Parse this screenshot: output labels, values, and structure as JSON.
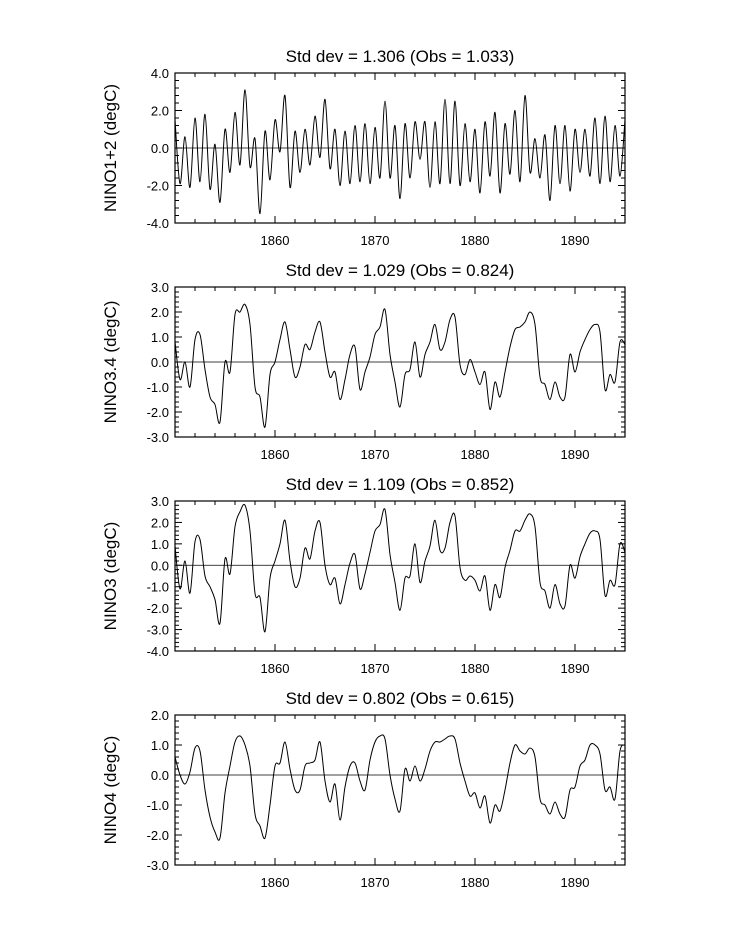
{
  "chart_data": [
    {
      "type": "line",
      "title": "Std dev = 1.306 (Obs = 1.033)",
      "ylabel": "NINO1+2 (degC)",
      "ylim": [
        -4.0,
        4.0
      ],
      "yticks": [
        "4.0",
        "2.0",
        "0.0",
        "-2.0",
        "-4.0"
      ],
      "ytick_values": [
        4.0,
        2.0,
        0.0,
        -2.0,
        -4.0
      ],
      "xlim": [
        1850,
        1895
      ],
      "xticks": [
        "1860",
        "1870",
        "1880",
        "1890"
      ],
      "xtick_values": [
        1860,
        1870,
        1880,
        1890
      ],
      "zero_line": true,
      "x": [
        1850.0,
        1850.5,
        1851.0,
        1851.5,
        1852.0,
        1852.5,
        1853.0,
        1853.5,
        1854.0,
        1854.5,
        1855.0,
        1855.5,
        1856.0,
        1856.5,
        1857.0,
        1857.5,
        1858.0,
        1858.5,
        1859.0,
        1859.5,
        1860.0,
        1860.5,
        1861.0,
        1861.5,
        1862.0,
        1862.5,
        1863.0,
        1863.5,
        1864.0,
        1864.5,
        1865.0,
        1865.5,
        1866.0,
        1866.5,
        1867.0,
        1867.5,
        1868.0,
        1868.5,
        1869.0,
        1869.5,
        1870.0,
        1870.5,
        1871.0,
        1871.5,
        1872.0,
        1872.5,
        1873.0,
        1873.5,
        1874.0,
        1874.5,
        1875.0,
        1875.5,
        1876.0,
        1876.5,
        1877.0,
        1877.5,
        1878.0,
        1878.5,
        1879.0,
        1879.5,
        1880.0,
        1880.5,
        1881.0,
        1881.5,
        1882.0,
        1882.5,
        1883.0,
        1883.5,
        1884.0,
        1884.5,
        1885.0,
        1885.5,
        1886.0,
        1886.5,
        1887.0,
        1887.5,
        1888.0,
        1888.5,
        1889.0,
        1889.5,
        1890.0,
        1890.5,
        1891.0,
        1891.5,
        1892.0,
        1892.5,
        1893.0,
        1893.5,
        1894.0,
        1894.5,
        1895.0
      ],
      "series": [
        {
          "values": [
            1.5,
            -1.9,
            0.6,
            -2.1,
            1.6,
            -1.8,
            1.8,
            -2.2,
            0.2,
            -2.9,
            1.0,
            -1.3,
            1.9,
            -0.9,
            3.1,
            -1.0,
            0.5,
            -3.5,
            0.9,
            -1.7,
            1.5,
            -0.2,
            2.8,
            -2.1,
            0.9,
            -1.3,
            1.0,
            -0.9,
            1.7,
            -0.5,
            2.6,
            -1.1,
            1.0,
            -2.0,
            0.9,
            -1.9,
            1.2,
            -1.8,
            1.3,
            -1.9,
            1.1,
            -1.6,
            2.5,
            -1.6,
            1.2,
            -2.7,
            1.3,
            -1.6,
            1.4,
            -0.6,
            1.4,
            -2.1,
            1.4,
            -1.9,
            2.6,
            -1.9,
            2.5,
            -2.0,
            1.3,
            -1.8,
            1.0,
            -2.4,
            1.4,
            -1.5,
            1.9,
            -2.4,
            1.3,
            -1.4,
            2.0,
            -1.8,
            2.8,
            -1.3,
            0.5,
            -1.6,
            0.7,
            -2.8,
            1.2,
            -1.9,
            1.2,
            -2.3,
            1.0,
            -1.3,
            1.0,
            -1.5,
            1.6,
            -1.9,
            1.7,
            -1.8,
            1.2,
            -1.5,
            1.5
          ]
        }
      ]
    },
    {
      "type": "line",
      "title": "Std dev = 1.029 (Obs = 0.824)",
      "ylabel": "NINO3.4 (degC)",
      "ylim": [
        -3.0,
        3.0
      ],
      "yticks": [
        "3.0",
        "2.0",
        "1.0",
        "0.0",
        "-1.0",
        "-2.0",
        "-3.0"
      ],
      "ytick_values": [
        3.0,
        2.0,
        1.0,
        0.0,
        -1.0,
        -2.0,
        -3.0
      ],
      "xlim": [
        1850,
        1895
      ],
      "xticks": [
        "1860",
        "1870",
        "1880",
        "1890"
      ],
      "xtick_values": [
        1860,
        1870,
        1880,
        1890
      ],
      "zero_line": true,
      "x": [
        1850.0,
        1850.5,
        1851.0,
        1851.5,
        1852.0,
        1852.5,
        1853.0,
        1853.5,
        1854.0,
        1854.5,
        1855.0,
        1855.5,
        1856.0,
        1856.5,
        1857.0,
        1857.5,
        1858.0,
        1858.5,
        1859.0,
        1859.5,
        1860.0,
        1860.5,
        1861.0,
        1861.5,
        1862.0,
        1862.5,
        1863.0,
        1863.5,
        1864.0,
        1864.5,
        1865.0,
        1865.5,
        1866.0,
        1866.5,
        1867.0,
        1867.5,
        1868.0,
        1868.5,
        1869.0,
        1869.5,
        1870.0,
        1870.5,
        1871.0,
        1871.5,
        1872.0,
        1872.5,
        1873.0,
        1873.5,
        1874.0,
        1874.5,
        1875.0,
        1875.5,
        1876.0,
        1876.5,
        1877.0,
        1877.5,
        1878.0,
        1878.5,
        1879.0,
        1879.5,
        1880.0,
        1880.5,
        1881.0,
        1881.5,
        1882.0,
        1882.5,
        1883.0,
        1883.5,
        1884.0,
        1884.5,
        1885.0,
        1885.5,
        1886.0,
        1886.5,
        1887.0,
        1887.5,
        1888.0,
        1888.5,
        1889.0,
        1889.5,
        1890.0,
        1890.5,
        1891.0,
        1891.5,
        1892.0,
        1892.5,
        1893.0,
        1893.5,
        1894.0,
        1894.5,
        1895.0
      ],
      "series": [
        {
          "values": [
            0.8,
            -0.7,
            0.0,
            -1.0,
            0.9,
            1.1,
            -0.3,
            -1.4,
            -1.7,
            -2.4,
            0.0,
            -0.4,
            1.9,
            2.0,
            2.3,
            1.5,
            -1.0,
            -1.4,
            -2.6,
            -0.5,
            0.0,
            0.9,
            1.6,
            0.5,
            -0.6,
            -0.2,
            0.7,
            0.5,
            1.2,
            1.6,
            0.4,
            -0.6,
            -0.4,
            -1.5,
            -0.7,
            0.3,
            0.6,
            -1.1,
            -0.4,
            0.2,
            1.1,
            1.4,
            2.1,
            0.3,
            -0.8,
            -1.8,
            -0.5,
            -0.3,
            0.8,
            -0.6,
            0.3,
            0.8,
            1.5,
            0.5,
            0.8,
            1.7,
            1.8,
            -0.1,
            -0.5,
            0.1,
            -0.4,
            -0.9,
            -0.4,
            -1.9,
            -0.8,
            -1.4,
            -0.4,
            0.6,
            1.3,
            1.4,
            1.6,
            2.0,
            1.5,
            -0.6,
            -0.9,
            -1.5,
            -0.8,
            -1.4,
            -1.4,
            0.3,
            -0.4,
            0.4,
            0.9,
            1.3,
            1.5,
            1.2,
            -1.1,
            -0.5,
            -0.8,
            0.8,
            0.7
          ]
        }
      ]
    },
    {
      "type": "line",
      "title": "Std dev = 1.109 (Obs = 0.852)",
      "ylabel": "NINO3 (degC)",
      "ylim": [
        -4.0,
        3.0
      ],
      "yticks": [
        "3.0",
        "2.0",
        "1.0",
        "0.0",
        "-1.0",
        "-2.0",
        "-3.0",
        "-4.0"
      ],
      "ytick_values": [
        3.0,
        2.0,
        1.0,
        0.0,
        -1.0,
        -2.0,
        -3.0,
        -4.0
      ],
      "xlim": [
        1850,
        1895
      ],
      "xticks": [
        "1860",
        "1870",
        "1880",
        "1890"
      ],
      "xtick_values": [
        1860,
        1870,
        1880,
        1890
      ],
      "zero_line": true,
      "x": [
        1850.0,
        1850.5,
        1851.0,
        1851.5,
        1852.0,
        1852.5,
        1853.0,
        1853.5,
        1854.0,
        1854.5,
        1855.0,
        1855.5,
        1856.0,
        1856.5,
        1857.0,
        1857.5,
        1858.0,
        1858.5,
        1859.0,
        1859.5,
        1860.0,
        1860.5,
        1861.0,
        1861.5,
        1862.0,
        1862.5,
        1863.0,
        1863.5,
        1864.0,
        1864.5,
        1865.0,
        1865.5,
        1866.0,
        1866.5,
        1867.0,
        1867.5,
        1868.0,
        1868.5,
        1869.0,
        1869.5,
        1870.0,
        1870.5,
        1871.0,
        1871.5,
        1872.0,
        1872.5,
        1873.0,
        1873.5,
        1874.0,
        1874.5,
        1875.0,
        1875.5,
        1876.0,
        1876.5,
        1877.0,
        1877.5,
        1878.0,
        1878.5,
        1879.0,
        1879.5,
        1880.0,
        1880.5,
        1881.0,
        1881.5,
        1882.0,
        1882.5,
        1883.0,
        1883.5,
        1884.0,
        1884.5,
        1885.0,
        1885.5,
        1886.0,
        1886.5,
        1887.0,
        1887.5,
        1888.0,
        1888.5,
        1889.0,
        1889.5,
        1890.0,
        1890.5,
        1891.0,
        1891.5,
        1892.0,
        1892.5,
        1893.0,
        1893.5,
        1894.0,
        1894.5,
        1895.0
      ],
      "series": [
        {
          "values": [
            0.9,
            -1.1,
            0.2,
            -1.3,
            1.1,
            1.2,
            -0.5,
            -1.0,
            -1.6,
            -2.7,
            0.3,
            -0.4,
            1.8,
            2.5,
            2.8,
            1.6,
            -1.3,
            -1.5,
            -3.1,
            -0.6,
            0.2,
            1.0,
            2.1,
            0.2,
            -1.0,
            -0.6,
            0.8,
            0.3,
            1.6,
            2.0,
            0.0,
            -0.9,
            -0.6,
            -1.8,
            -0.9,
            0.1,
            0.5,
            -1.1,
            -0.4,
            0.6,
            1.6,
            1.9,
            2.6,
            0.5,
            -0.8,
            -2.1,
            -0.6,
            -0.5,
            1.0,
            -0.8,
            0.2,
            0.9,
            2.1,
            0.7,
            0.8,
            2.0,
            2.3,
            -0.1,
            -0.7,
            -0.5,
            -0.7,
            -1.2,
            -0.5,
            -2.1,
            -0.9,
            -1.5,
            -0.1,
            0.7,
            1.6,
            1.6,
            2.1,
            2.4,
            1.8,
            -0.8,
            -1.2,
            -2.0,
            -0.9,
            -1.8,
            -1.9,
            0.0,
            -0.6,
            0.4,
            1.0,
            1.5,
            1.6,
            1.2,
            -1.4,
            -0.7,
            -0.9,
            1.0,
            0.6
          ]
        }
      ]
    },
    {
      "type": "line",
      "title": "Std dev = 0.802 (Obs = 0.615)",
      "ylabel": "NINO4 (degC)",
      "ylim": [
        -3.0,
        2.0
      ],
      "yticks": [
        "2.0",
        "1.0",
        "0.0",
        "-1.0",
        "-2.0",
        "-3.0"
      ],
      "ytick_values": [
        2.0,
        1.0,
        0.0,
        -1.0,
        -2.0,
        -3.0
      ],
      "xlim": [
        1850,
        1895
      ],
      "xticks": [
        "1860",
        "1870",
        "1880",
        "1890"
      ],
      "xtick_values": [
        1860,
        1870,
        1880,
        1890
      ],
      "zero_line": true,
      "x": [
        1850.0,
        1850.5,
        1851.0,
        1851.5,
        1852.0,
        1852.5,
        1853.0,
        1853.5,
        1854.0,
        1854.5,
        1855.0,
        1855.5,
        1856.0,
        1856.5,
        1857.0,
        1857.5,
        1858.0,
        1858.5,
        1859.0,
        1859.5,
        1860.0,
        1860.5,
        1861.0,
        1861.5,
        1862.0,
        1862.5,
        1863.0,
        1863.5,
        1864.0,
        1864.5,
        1865.0,
        1865.5,
        1866.0,
        1866.5,
        1867.0,
        1867.5,
        1868.0,
        1868.5,
        1869.0,
        1869.5,
        1870.0,
        1870.5,
        1871.0,
        1871.5,
        1872.0,
        1872.5,
        1873.0,
        1873.5,
        1874.0,
        1874.5,
        1875.0,
        1875.5,
        1876.0,
        1876.5,
        1877.0,
        1877.5,
        1878.0,
        1878.5,
        1879.0,
        1879.5,
        1880.0,
        1880.5,
        1881.0,
        1881.5,
        1882.0,
        1882.5,
        1883.0,
        1883.5,
        1884.0,
        1884.5,
        1885.0,
        1885.5,
        1886.0,
        1886.5,
        1887.0,
        1887.5,
        1888.0,
        1888.5,
        1889.0,
        1889.5,
        1890.0,
        1890.5,
        1891.0,
        1891.5,
        1892.0,
        1892.5,
        1893.0,
        1893.5,
        1894.0,
        1894.5,
        1895.0
      ],
      "series": [
        {
          "values": [
            0.6,
            0.0,
            -0.3,
            0.1,
            0.9,
            0.8,
            -0.5,
            -1.4,
            -1.9,
            -2.1,
            -0.6,
            0.3,
            1.1,
            1.3,
            1.0,
            0.3,
            -1.3,
            -1.7,
            -2.1,
            -1.0,
            0.3,
            0.4,
            1.1,
            0.2,
            -0.5,
            -0.5,
            0.3,
            0.4,
            0.5,
            1.1,
            -0.2,
            -0.9,
            -0.3,
            -1.5,
            -0.4,
            0.3,
            0.4,
            -0.2,
            -0.5,
            0.5,
            1.1,
            1.3,
            1.2,
            0.0,
            -0.8,
            -1.2,
            0.2,
            -0.2,
            0.3,
            -0.2,
            0.2,
            0.8,
            1.1,
            1.1,
            1.2,
            1.3,
            1.2,
            0.4,
            -0.2,
            -0.7,
            -0.6,
            -1.1,
            -0.7,
            -1.6,
            -1.0,
            -1.2,
            -0.5,
            0.4,
            1.0,
            0.8,
            0.7,
            0.9,
            0.6,
            -0.8,
            -1.0,
            -1.3,
            -0.9,
            -1.3,
            -1.4,
            -0.5,
            -0.4,
            0.3,
            0.5,
            1.0,
            1.0,
            0.7,
            -0.5,
            -0.4,
            -0.8,
            0.8,
            1.0
          ]
        }
      ]
    }
  ]
}
